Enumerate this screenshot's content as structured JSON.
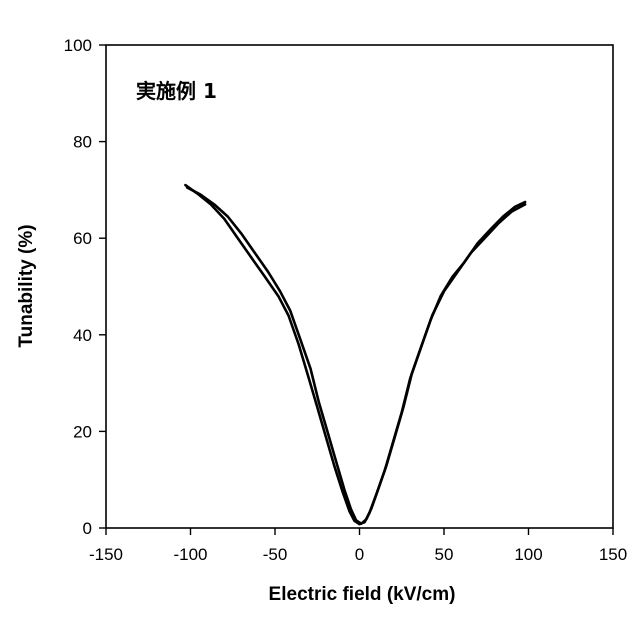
{
  "chart_data": {
    "type": "line",
    "title": "",
    "annotation": "実施例 1",
    "xlabel": "Electric field   (kV/cm)",
    "ylabel": "Tunability   (%)",
    "xlim": [
      -150,
      150
    ],
    "ylim": [
      0,
      100
    ],
    "x_ticks": [
      -150,
      -100,
      -50,
      0,
      50,
      100,
      150
    ],
    "y_ticks": [
      0,
      20,
      40,
      60,
      80,
      100
    ],
    "grid": false,
    "legend": "none",
    "series": [
      {
        "color": "#000000",
        "points": [
          [
            -103,
            71
          ],
          [
            -95,
            69
          ],
          [
            -88,
            67
          ],
          [
            -80,
            64
          ],
          [
            -72,
            60
          ],
          [
            -64,
            56
          ],
          [
            -56,
            52
          ],
          [
            -48,
            48
          ],
          [
            -42,
            44
          ],
          [
            -36,
            38
          ],
          [
            -30,
            31
          ],
          [
            -25,
            25
          ],
          [
            -20,
            19
          ],
          [
            -15,
            13
          ],
          [
            -10,
            7.5
          ],
          [
            -6,
            3.5
          ],
          [
            -3,
            1.5
          ],
          [
            0,
            0.8
          ],
          [
            3,
            1.2
          ],
          [
            6,
            3.2
          ],
          [
            10,
            7
          ],
          [
            15,
            12
          ],
          [
            20,
            18
          ],
          [
            25,
            24
          ],
          [
            30,
            31
          ],
          [
            36,
            37
          ],
          [
            42,
            43
          ],
          [
            48,
            48
          ],
          [
            55,
            52
          ],
          [
            62,
            55
          ],
          [
            70,
            59
          ],
          [
            78,
            62
          ],
          [
            85,
            64.5
          ],
          [
            92,
            66.5
          ],
          [
            98,
            67.5
          ]
        ]
      },
      {
        "color": "#000000",
        "points": [
          [
            98,
            67
          ],
          [
            90,
            65.5
          ],
          [
            82,
            63
          ],
          [
            74,
            60
          ],
          [
            66,
            57
          ],
          [
            58,
            53
          ],
          [
            50,
            49
          ],
          [
            43,
            44
          ],
          [
            37,
            38
          ],
          [
            31,
            32
          ],
          [
            26,
            25
          ],
          [
            21,
            19
          ],
          [
            16,
            13
          ],
          [
            11,
            8
          ],
          [
            7,
            4
          ],
          [
            4,
            1.8
          ],
          [
            1,
            0.9
          ],
          [
            -2,
            1.6
          ],
          [
            -5,
            3.8
          ],
          [
            -9,
            8
          ],
          [
            -14,
            14
          ],
          [
            -19,
            20
          ],
          [
            -24,
            26
          ],
          [
            -29,
            33
          ],
          [
            -35,
            39
          ],
          [
            -41,
            45
          ],
          [
            -47,
            49
          ],
          [
            -54,
            53
          ],
          [
            -62,
            57
          ],
          [
            -70,
            61
          ],
          [
            -78,
            64.5
          ],
          [
            -86,
            67
          ],
          [
            -94,
            69
          ],
          [
            -102,
            70.5
          ]
        ]
      }
    ]
  }
}
